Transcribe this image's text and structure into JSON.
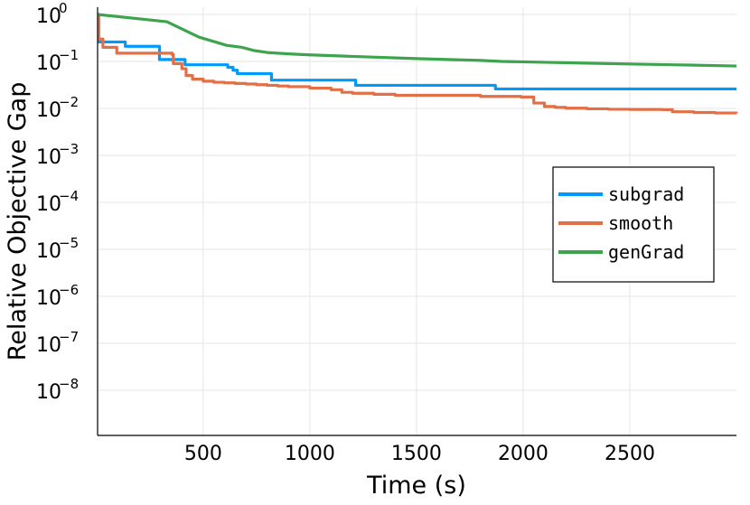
{
  "chart_data": {
    "type": "line",
    "title": "",
    "xlabel": "Time (s)",
    "ylabel": "Relative Objective Gap",
    "xlim": [
      5,
      3000
    ],
    "ylim_log10": [
      -9,
      0
    ],
    "yscale": "log",
    "grid": true,
    "legend_position": "right-middle",
    "x_ticks": [
      500,
      1000,
      1500,
      2000,
      2500
    ],
    "y_ticks": [
      {
        "exponent": 0,
        "base": "10",
        "exp_label": "0"
      },
      {
        "exponent": -1,
        "base": "10",
        "exp_label": "−1"
      },
      {
        "exponent": -2,
        "base": "10",
        "exp_label": "−2"
      },
      {
        "exponent": -3,
        "base": "10",
        "exp_label": "−3"
      },
      {
        "exponent": -4,
        "base": "10",
        "exp_label": "−4"
      },
      {
        "exponent": -5,
        "base": "10",
        "exp_label": "−5"
      },
      {
        "exponent": -6,
        "base": "10",
        "exp_label": "−6"
      },
      {
        "exponent": -7,
        "base": "10",
        "exp_label": "−7"
      },
      {
        "exponent": -8,
        "base": "10",
        "exp_label": "−8"
      }
    ],
    "series": [
      {
        "name": "subgrad",
        "color": "#009AFA",
        "step": true,
        "x": [
          5,
          10,
          135,
          295,
          415,
          615,
          640,
          660,
          820,
          1215,
          1870,
          3000
        ],
        "y": [
          1.0,
          0.26,
          0.21,
          0.11,
          0.085,
          0.075,
          0.065,
          0.055,
          0.04,
          0.031,
          0.026,
          0.026
        ]
      },
      {
        "name": "smooth",
        "color": "#E26F46",
        "step": true,
        "x": [
          5,
          10,
          30,
          95,
          355,
          360,
          400,
          420,
          450,
          500,
          550,
          600,
          650,
          700,
          750,
          800,
          850,
          900,
          1000,
          1100,
          1150,
          1200,
          1250,
          1300,
          1400,
          1500,
          1600,
          1700,
          1800,
          1850,
          1990,
          2050,
          2100,
          2150,
          2200,
          2300,
          2400,
          2500,
          2550,
          2600,
          2650,
          2700,
          2800,
          2900,
          3000
        ],
        "y": [
          1.0,
          0.3,
          0.2,
          0.15,
          0.14,
          0.09,
          0.07,
          0.05,
          0.042,
          0.038,
          0.036,
          0.035,
          0.034,
          0.033,
          0.032,
          0.031,
          0.03,
          0.029,
          0.027,
          0.025,
          0.022,
          0.021,
          0.021,
          0.02,
          0.019,
          0.019,
          0.019,
          0.019,
          0.018,
          0.018,
          0.0175,
          0.013,
          0.011,
          0.0105,
          0.0101,
          0.0098,
          0.0096,
          0.0095,
          0.0095,
          0.0095,
          0.0094,
          0.0085,
          0.0082,
          0.008,
          0.0078
        ]
      },
      {
        "name": "genGrad",
        "color": "#3DA44D",
        "step": false,
        "x": [
          5,
          330,
          480,
          610,
          680,
          740,
          800,
          900,
          1000,
          1200,
          1500,
          1800,
          1900,
          2100,
          2400,
          2700,
          3000
        ],
        "y": [
          1.0,
          0.7,
          0.33,
          0.22,
          0.2,
          0.17,
          0.155,
          0.145,
          0.138,
          0.128,
          0.115,
          0.105,
          0.1,
          0.096,
          0.09,
          0.085,
          0.08
        ]
      }
    ]
  }
}
